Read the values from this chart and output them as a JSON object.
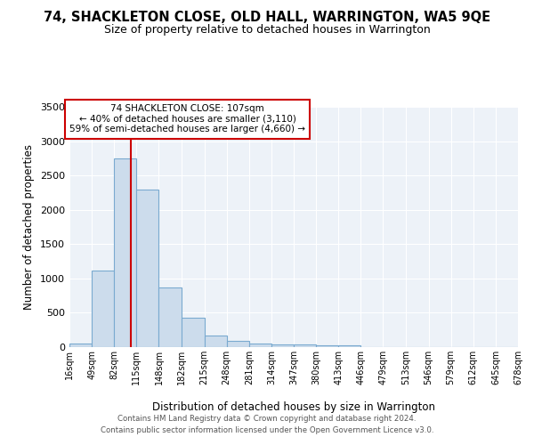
{
  "title": "74, SHACKLETON CLOSE, OLD HALL, WARRINGTON, WA5 9QE",
  "subtitle": "Size of property relative to detached houses in Warrington",
  "xlabel": "Distribution of detached houses by size in Warrington",
  "ylabel": "Number of detached properties",
  "bin_edges": [
    16,
    49,
    82,
    115,
    148,
    182,
    215,
    248,
    281,
    314,
    347,
    380,
    413,
    446,
    479,
    513,
    546,
    579,
    612,
    645,
    678
  ],
  "bin_labels": [
    "16sqm",
    "49sqm",
    "82sqm",
    "115sqm",
    "148sqm",
    "182sqm",
    "215sqm",
    "248sqm",
    "281sqm",
    "314sqm",
    "347sqm",
    "380sqm",
    "413sqm",
    "446sqm",
    "479sqm",
    "513sqm",
    "546sqm",
    "579sqm",
    "612sqm",
    "645sqm",
    "678sqm"
  ],
  "bar_heights": [
    55,
    1110,
    2750,
    2290,
    870,
    430,
    175,
    95,
    55,
    45,
    35,
    25,
    30,
    0,
    0,
    0,
    0,
    0,
    0,
    0
  ],
  "bar_color": "#ccdcec",
  "bar_edge_color": "#7aaad0",
  "property_size": 107,
  "property_label": "74 SHACKLETON CLOSE: 107sqm",
  "annotation_line1": "← 40% of detached houses are smaller (3,110)",
  "annotation_line2": "59% of semi-detached houses are larger (4,660) →",
  "vline_color": "#cc0000",
  "ylim": [
    0,
    3500
  ],
  "yticks": [
    0,
    500,
    1000,
    1500,
    2000,
    2500,
    3000,
    3500
  ],
  "background_color": "#edf2f8",
  "footer_line1": "Contains HM Land Registry data © Crown copyright and database right 2024.",
  "footer_line2": "Contains public sector information licensed under the Open Government Licence v3.0.",
  "annotation_box_color": "#ffffff",
  "annotation_border_color": "#cc0000"
}
